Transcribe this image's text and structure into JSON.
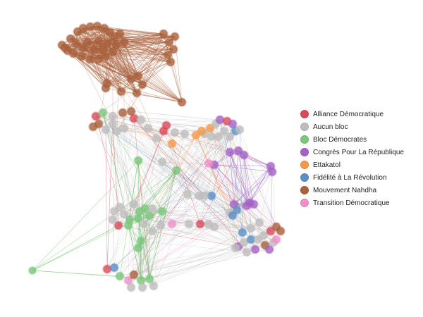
{
  "legend": {
    "items": [
      {
        "label": "Alliance Démocratique",
        "color": "#d94a5a"
      },
      {
        "label": "Aucun bloc",
        "color": "#bdbdbd"
      },
      {
        "label": "Bloc Démocrates",
        "color": "#7ac67a"
      },
      {
        "label": "Congrès Pour La République",
        "color": "#a462c4"
      },
      {
        "label": "Ettakatol",
        "color": "#f4974a"
      },
      {
        "label": "Fidélité à La Révolution",
        "color": "#5b8ec4"
      },
      {
        "label": "Mouvement Nahdha",
        "color": "#a9603c"
      },
      {
        "label": "Transition Démocratique",
        "color": "#f08ec8"
      }
    ]
  }
}
